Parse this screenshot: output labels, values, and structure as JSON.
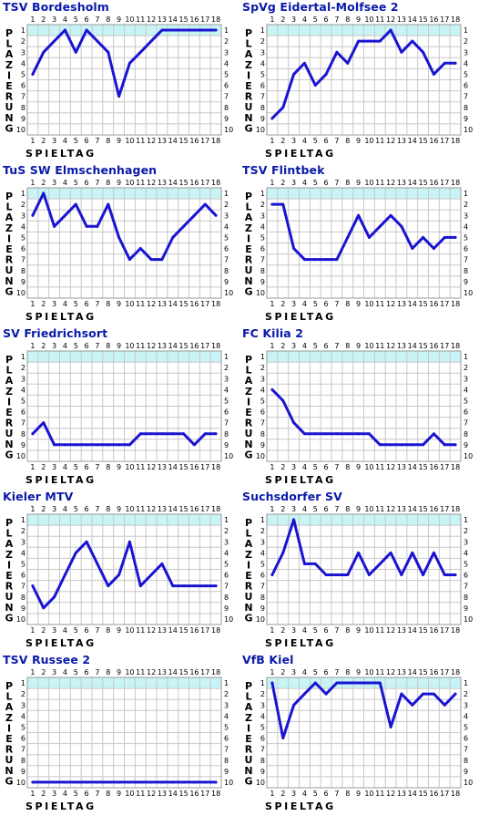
{
  "chart_data": [
    {
      "type": "line",
      "title": "TSV Bordesholm",
      "xlabel": "SPIELTAG",
      "ylabel": "PLAZIERUNG",
      "x": [
        1,
        2,
        3,
        4,
        5,
        6,
        7,
        8,
        9,
        10,
        11,
        12,
        13,
        14,
        15,
        16,
        17,
        18
      ],
      "values": [
        5,
        3,
        2,
        1,
        3,
        1,
        2,
        3,
        7,
        4,
        3,
        2,
        1,
        1,
        1,
        1,
        1,
        1
      ],
      "ylim": [
        1,
        10
      ],
      "xlim": [
        1,
        18
      ]
    },
    {
      "type": "line",
      "title": "SpVg Eidertal-Molfsee 2",
      "xlabel": "SPIELTAG",
      "ylabel": "PLAZIERUNG",
      "x": [
        1,
        2,
        3,
        4,
        5,
        6,
        7,
        8,
        9,
        10,
        11,
        12,
        13,
        14,
        15,
        16,
        17,
        18
      ],
      "values": [
        9,
        8,
        5,
        4,
        6,
        5,
        3,
        4,
        2,
        2,
        2,
        1,
        3,
        2,
        3,
        5,
        4,
        4
      ],
      "ylim": [
        1,
        10
      ],
      "xlim": [
        1,
        18
      ]
    },
    {
      "type": "line",
      "title": "TuS SW Elmschenhagen",
      "xlabel": "SPIELTAG",
      "ylabel": "PLAZIERUNG",
      "x": [
        1,
        2,
        3,
        4,
        5,
        6,
        7,
        8,
        9,
        10,
        11,
        12,
        13,
        14,
        15,
        16,
        17,
        18
      ],
      "values": [
        3,
        1,
        4,
        3,
        2,
        4,
        4,
        2,
        5,
        7,
        6,
        7,
        7,
        5,
        4,
        3,
        2,
        3
      ],
      "ylim": [
        1,
        10
      ],
      "xlim": [
        1,
        18
      ]
    },
    {
      "type": "line",
      "title": "TSV Flintbek",
      "xlabel": "SPIELTAG",
      "ylabel": "PLAZIERUNG",
      "x": [
        1,
        2,
        3,
        4,
        5,
        6,
        7,
        8,
        9,
        10,
        11,
        12,
        13,
        14,
        15,
        16,
        17,
        18
      ],
      "values": [
        2,
        2,
        6,
        7,
        7,
        7,
        7,
        5,
        3,
        5,
        4,
        3,
        4,
        6,
        5,
        6,
        5,
        5
      ],
      "ylim": [
        1,
        10
      ],
      "xlim": [
        1,
        18
      ]
    },
    {
      "type": "line",
      "title": "SV Friedrichsort",
      "xlabel": "SPIELTAG",
      "ylabel": "PLAZIERUNG",
      "x": [
        1,
        2,
        3,
        4,
        5,
        6,
        7,
        8,
        9,
        10,
        11,
        12,
        13,
        14,
        15,
        16,
        17,
        18
      ],
      "values": [
        8,
        7,
        9,
        9,
        9,
        9,
        9,
        9,
        9,
        9,
        8,
        8,
        8,
        8,
        8,
        9,
        8,
        8
      ],
      "ylim": [
        1,
        10
      ],
      "xlim": [
        1,
        18
      ]
    },
    {
      "type": "line",
      "title": "FC Kilia 2",
      "xlabel": "SPIELTAG",
      "ylabel": "PLAZIERUNG",
      "x": [
        1,
        2,
        3,
        4,
        5,
        6,
        7,
        8,
        9,
        10,
        11,
        12,
        13,
        14,
        15,
        16,
        17,
        18
      ],
      "values": [
        4,
        5,
        7,
        8,
        8,
        8,
        8,
        8,
        8,
        8,
        9,
        9,
        9,
        9,
        9,
        8,
        9,
        9
      ],
      "ylim": [
        1,
        10
      ],
      "xlim": [
        1,
        18
      ]
    },
    {
      "type": "line",
      "title": "Kieler MTV",
      "xlabel": "SPIELTAG",
      "ylabel": "PLAZIERUNG",
      "x": [
        1,
        2,
        3,
        4,
        5,
        6,
        7,
        8,
        9,
        10,
        11,
        12,
        13,
        14,
        15,
        16,
        17,
        18
      ],
      "values": [
        7,
        9,
        8,
        6,
        4,
        3,
        5,
        7,
        6,
        3,
        7,
        6,
        5,
        7,
        7,
        7,
        7,
        7
      ],
      "ylim": [
        1,
        10
      ],
      "xlim": [
        1,
        18
      ]
    },
    {
      "type": "line",
      "title": "Suchsdorfer SV",
      "xlabel": "SPIELTAG",
      "ylabel": "PLAZIERUNG",
      "x": [
        1,
        2,
        3,
        4,
        5,
        6,
        7,
        8,
        9,
        10,
        11,
        12,
        13,
        14,
        15,
        16,
        17,
        18
      ],
      "values": [
        6,
        4,
        1,
        5,
        5,
        6,
        6,
        6,
        4,
        6,
        5,
        4,
        6,
        4,
        6,
        4,
        6,
        6
      ],
      "ylim": [
        1,
        10
      ],
      "xlim": [
        1,
        18
      ]
    },
    {
      "type": "line",
      "title": "TSV Russee 2",
      "xlabel": "SPIELTAG",
      "ylabel": "PLAZIERUNG",
      "x": [
        1,
        2,
        3,
        4,
        5,
        6,
        7,
        8,
        9,
        10,
        11,
        12,
        13,
        14,
        15,
        16,
        17,
        18
      ],
      "values": [
        10,
        10,
        10,
        10,
        10,
        10,
        10,
        10,
        10,
        10,
        10,
        10,
        10,
        10,
        10,
        10,
        10,
        10
      ],
      "ylim": [
        1,
        10
      ],
      "xlim": [
        1,
        18
      ]
    },
    {
      "type": "line",
      "title": "VfB Kiel",
      "xlabel": "SPIELTAG",
      "ylabel": "PLAZIERUNG",
      "x": [
        1,
        2,
        3,
        4,
        5,
        6,
        7,
        8,
        9,
        10,
        11,
        12,
        13,
        14,
        15,
        16,
        17,
        18
      ],
      "values": [
        1,
        6,
        3,
        2,
        1,
        2,
        1,
        1,
        1,
        1,
        1,
        5,
        2,
        3,
        2,
        2,
        3,
        2
      ],
      "ylim": [
        1,
        10
      ],
      "xlim": [
        1,
        18
      ]
    }
  ],
  "colors": {
    "line": "#1a14d2",
    "title": "#0a1aa8",
    "first_place_band": "#c8f4f6",
    "grid": "#c8c8c8",
    "frame": "#9a9a9a"
  }
}
